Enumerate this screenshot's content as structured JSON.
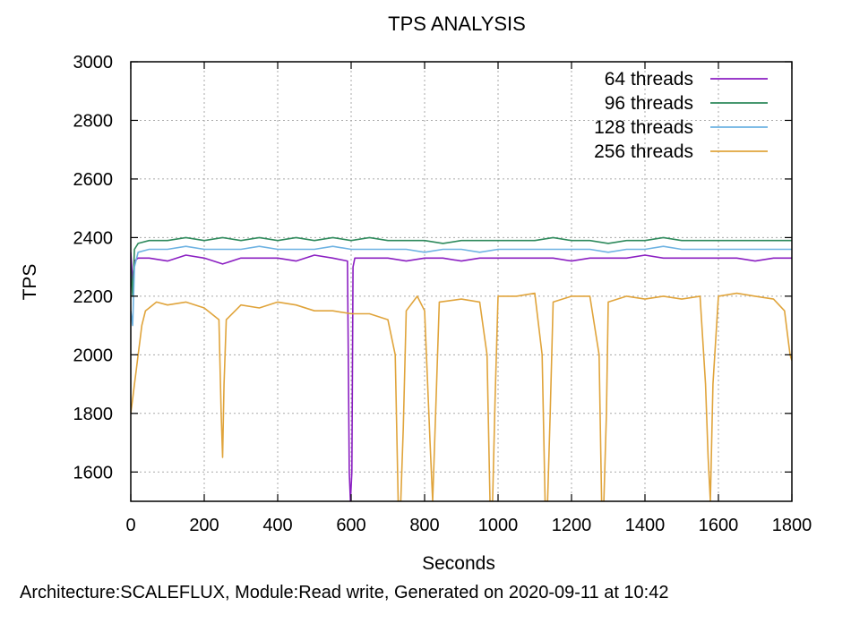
{
  "chart_data": {
    "type": "line",
    "title": "TPS ANALYSIS",
    "xlabel": "Seconds",
    "ylabel": "TPS",
    "footer": "Architecture:SCALEFLUX, Module:Read write, Generated on 2020-09-11 at 10:42",
    "xlim": [
      0,
      1800
    ],
    "ylim": [
      1500,
      3000
    ],
    "xticks": [
      0,
      200,
      400,
      600,
      800,
      1000,
      1200,
      1400,
      1600,
      1800
    ],
    "yticks": [
      1600,
      1800,
      2000,
      2200,
      2400,
      2600,
      2800,
      3000
    ],
    "grid": true,
    "legend_position": "top-right",
    "series": [
      {
        "name": "64 threads",
        "color": "#8b1fc2",
        "x": [
          0,
          5,
          10,
          20,
          50,
          100,
          150,
          200,
          250,
          300,
          350,
          400,
          450,
          500,
          550,
          590,
          595,
          598,
          602,
          605,
          610,
          650,
          700,
          750,
          800,
          850,
          900,
          950,
          1000,
          1050,
          1100,
          1150,
          1200,
          1250,
          1300,
          1350,
          1400,
          1450,
          1500,
          1550,
          1600,
          1650,
          1700,
          1750,
          1800
        ],
        "y": [
          2350,
          2250,
          2320,
          2330,
          2330,
          2320,
          2340,
          2330,
          2310,
          2330,
          2330,
          2330,
          2320,
          2340,
          2330,
          2320,
          1600,
          1500,
          1600,
          2300,
          2330,
          2330,
          2330,
          2320,
          2330,
          2330,
          2320,
          2330,
          2330,
          2330,
          2330,
          2330,
          2320,
          2330,
          2330,
          2330,
          2340,
          2330,
          2330,
          2330,
          2330,
          2330,
          2320,
          2330,
          2330
        ]
      },
      {
        "name": "96 threads",
        "color": "#2e8a5c",
        "x": [
          0,
          5,
          10,
          20,
          50,
          100,
          150,
          200,
          250,
          300,
          350,
          400,
          450,
          500,
          550,
          600,
          650,
          700,
          750,
          800,
          850,
          900,
          950,
          1000,
          1050,
          1100,
          1150,
          1200,
          1250,
          1300,
          1350,
          1400,
          1450,
          1500,
          1550,
          1600,
          1650,
          1700,
          1750,
          1800
        ],
        "y": [
          2300,
          2200,
          2360,
          2380,
          2390,
          2390,
          2400,
          2390,
          2400,
          2390,
          2400,
          2390,
          2400,
          2390,
          2400,
          2390,
          2400,
          2390,
          2390,
          2390,
          2380,
          2390,
          2390,
          2390,
          2390,
          2390,
          2400,
          2390,
          2390,
          2380,
          2390,
          2390,
          2400,
          2390,
          2390,
          2390,
          2390,
          2390,
          2390,
          2390
        ]
      },
      {
        "name": "128 threads",
        "color": "#6db2e2",
        "x": [
          0,
          5,
          10,
          20,
          50,
          100,
          150,
          200,
          250,
          300,
          350,
          400,
          450,
          500,
          550,
          600,
          650,
          700,
          750,
          800,
          850,
          900,
          950,
          1000,
          1050,
          1100,
          1150,
          1200,
          1250,
          1300,
          1350,
          1400,
          1450,
          1500,
          1550,
          1600,
          1650,
          1700,
          1750,
          1800
        ],
        "y": [
          2150,
          2100,
          2300,
          2350,
          2360,
          2360,
          2370,
          2360,
          2360,
          2360,
          2370,
          2360,
          2360,
          2360,
          2370,
          2360,
          2360,
          2360,
          2360,
          2350,
          2360,
          2360,
          2350,
          2360,
          2360,
          2360,
          2360,
          2360,
          2360,
          2350,
          2360,
          2360,
          2370,
          2360,
          2360,
          2360,
          2360,
          2360,
          2360,
          2360
        ]
      },
      {
        "name": "256 threads",
        "color": "#e0a43b",
        "x": [
          0,
          5,
          10,
          15,
          20,
          25,
          30,
          40,
          50,
          70,
          100,
          150,
          200,
          240,
          246,
          250,
          254,
          260,
          300,
          350,
          400,
          450,
          500,
          550,
          600,
          650,
          700,
          720,
          728,
          735,
          742,
          750,
          780,
          800,
          815,
          822,
          830,
          840,
          900,
          950,
          970,
          978,
          985,
          992,
          1000,
          1050,
          1100,
          1120,
          1128,
          1135,
          1142,
          1150,
          1200,
          1250,
          1275,
          1282,
          1288,
          1295,
          1300,
          1350,
          1400,
          1450,
          1500,
          1550,
          1565,
          1572,
          1578,
          1585,
          1600,
          1650,
          1700,
          1750,
          1780,
          1790,
          1795,
          1800
        ],
        "y": [
          1800,
          1850,
          1900,
          1950,
          2000,
          2050,
          2100,
          2150,
          2160,
          2180,
          2170,
          2180,
          2160,
          2120,
          1800,
          1650,
          1900,
          2120,
          2170,
          2160,
          2180,
          2170,
          2150,
          2150,
          2140,
          2140,
          2120,
          2000,
          1500,
          1500,
          1750,
          2150,
          2200,
          2150,
          1700,
          1500,
          1800,
          2180,
          2190,
          2180,
          2000,
          1500,
          1500,
          1850,
          2200,
          2200,
          2210,
          2000,
          1500,
          1500,
          1800,
          2180,
          2200,
          2200,
          2000,
          1500,
          1500,
          1800,
          2180,
          2200,
          2190,
          2200,
          2190,
          2200,
          1900,
          1650,
          1500,
          1900,
          2200,
          2210,
          2200,
          2190,
          2150,
          2050,
          2000,
          1980
        ]
      }
    ]
  }
}
